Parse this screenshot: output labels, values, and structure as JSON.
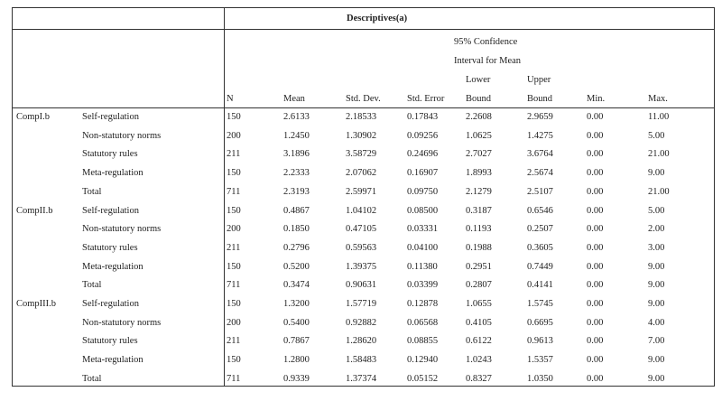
{
  "title": "Descriptives(a)",
  "headers": {
    "ci1": "95% Confidence",
    "ci2": "Interval for Mean",
    "lower": "Lower",
    "upper": "Upper",
    "n": "N",
    "mean": "Mean",
    "sd": "Std. Dev.",
    "se": "Std. Error",
    "lower_b": "Bound",
    "upper_b": "Bound",
    "min": "Min.",
    "max": "Max."
  },
  "groups": [
    {
      "name": "CompI.b",
      "rows": [
        [
          "Self-regulation",
          "150",
          "2.6133",
          "2.18533",
          "0.17843",
          "2.2608",
          "2.9659",
          "0.00",
          "11.00"
        ],
        [
          "Non-statutory norms",
          "200",
          "1.2450",
          "1.30902",
          "0.09256",
          "1.0625",
          "1.4275",
          "0.00",
          "5.00"
        ],
        [
          "Statutory rules",
          "211",
          "3.1896",
          "3.58729",
          "0.24696",
          "2.7027",
          "3.6764",
          "0.00",
          "21.00"
        ],
        [
          "Meta-regulation",
          "150",
          "2.2333",
          "2.07062",
          "0.16907",
          "1.8993",
          "2.5674",
          "0.00",
          "9.00"
        ],
        [
          "Total",
          "711",
          "2.3193",
          "2.59971",
          "0.09750",
          "2.1279",
          "2.5107",
          "0.00",
          "21.00"
        ]
      ]
    },
    {
      "name": "CompII.b",
      "rows": [
        [
          "Self-regulation",
          "150",
          "0.4867",
          "1.04102",
          "0.08500",
          "0.3187",
          "0.6546",
          "0.00",
          "5.00"
        ],
        [
          "Non-statutory norms",
          "200",
          "0.1850",
          "0.47105",
          "0.03331",
          "0.1193",
          "0.2507",
          "0.00",
          "2.00"
        ],
        [
          "Statutory rules",
          "211",
          "0.2796",
          "0.59563",
          "0.04100",
          "0.1988",
          "0.3605",
          "0.00",
          "3.00"
        ],
        [
          "Meta-regulation",
          "150",
          "0.5200",
          "1.39375",
          "0.11380",
          "0.2951",
          "0.7449",
          "0.00",
          "9.00"
        ],
        [
          "Total",
          "711",
          "0.3474",
          "0.90631",
          "0.03399",
          "0.2807",
          "0.4141",
          "0.00",
          "9.00"
        ]
      ]
    },
    {
      "name": "CompIII.b",
      "rows": [
        [
          "Self-regulation",
          "150",
          "1.3200",
          "1.57719",
          "0.12878",
          "1.0655",
          "1.5745",
          "0.00",
          "9.00"
        ],
        [
          "Non-statutory norms",
          "200",
          "0.5400",
          "0.92882",
          "0.06568",
          "0.4105",
          "0.6695",
          "0.00",
          "4.00"
        ],
        [
          "Statutory rules",
          "211",
          "0.7867",
          "1.28620",
          "0.08855",
          "0.6122",
          "0.9613",
          "0.00",
          "7.00"
        ],
        [
          "Meta-regulation",
          "150",
          "1.2800",
          "1.58483",
          "0.12940",
          "1.0243",
          "1.5357",
          "0.00",
          "9.00"
        ],
        [
          "Total",
          "711",
          "0.9339",
          "1.37374",
          "0.05152",
          "0.8327",
          "1.0350",
          "0.00",
          "9.00"
        ]
      ]
    }
  ]
}
